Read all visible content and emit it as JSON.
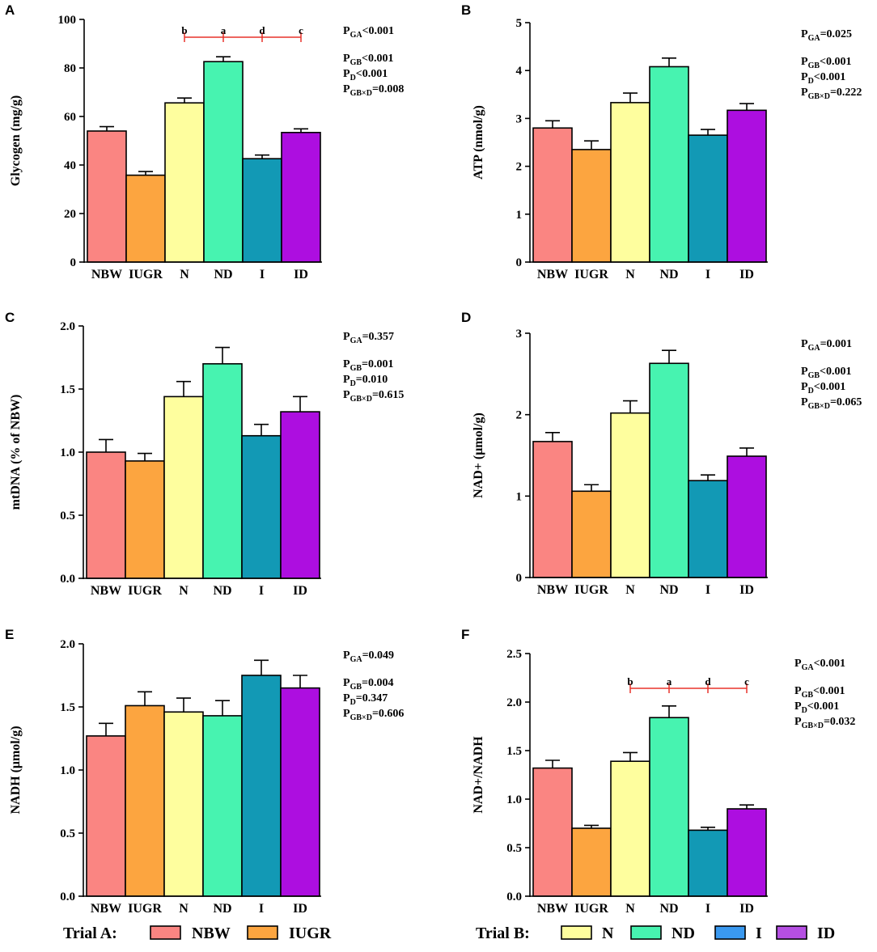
{
  "figure": {
    "groups": [
      "NBW",
      "IUGR",
      "N",
      "ND",
      "I",
      "ID"
    ],
    "colors": {
      "NBW": "#fa8582",
      "IUGR": "#fca540",
      "N": "#fefe9e",
      "ND": "#47f3b0",
      "I": "#1299b5",
      "ID": "#ad0ee0"
    },
    "legend": {
      "trial_a_label": "Trial A:",
      "trial_a_items": [
        {
          "label": "NBW",
          "color": "#fa8582"
        },
        {
          "label": "IUGR",
          "color": "#fca540"
        }
      ],
      "trial_b_label": "Trial B:",
      "trial_b_items": [
        {
          "label": "N",
          "color": "#fefe9e"
        },
        {
          "label": "ND",
          "color": "#47f3b0"
        },
        {
          "label": "I",
          "color": "#3a99f0"
        },
        {
          "label": "ID",
          "color": "#b54fe3"
        }
      ]
    }
  },
  "chart_data": [
    {
      "panel": "A",
      "type": "bar",
      "ylabel": "Glycogen (mg/g)",
      "categories": [
        "NBW",
        "IUGR",
        "N",
        "ND",
        "I",
        "ID"
      ],
      "values": [
        54,
        35.8,
        65.6,
        82.6,
        42.6,
        53.4
      ],
      "errors": [
        1.8,
        1.5,
        2.0,
        2.0,
        1.5,
        1.5
      ],
      "ylim": [
        0,
        100
      ],
      "yticks": [
        "0",
        "20",
        "40",
        "60",
        "80",
        "100"
      ],
      "stats": [
        {
          "sub": "GA",
          "rest": "<0.001"
        },
        {
          "sub": "GB",
          "rest": "<0.001"
        },
        {
          "sub": "D",
          "rest": "<0.001"
        },
        {
          "sub": "GB×D",
          "rest": "=0.008"
        }
      ],
      "letters": [
        "b",
        "a",
        "d",
        "c"
      ]
    },
    {
      "panel": "B",
      "type": "bar",
      "ylabel": "ATP (nmol/g)",
      "categories": [
        "NBW",
        "IUGR",
        "N",
        "ND",
        "I",
        "ID"
      ],
      "values": [
        2.8,
        2.35,
        3.33,
        4.08,
        2.65,
        3.17
      ],
      "errors": [
        0.15,
        0.18,
        0.2,
        0.18,
        0.12,
        0.14
      ],
      "ylim": [
        0,
        5
      ],
      "yticks": [
        "0",
        "1",
        "2",
        "3",
        "4",
        "5"
      ],
      "stats": [
        {
          "sub": "GA",
          "rest": "=0.025"
        },
        {
          "sub": "GB",
          "rest": "<0.001"
        },
        {
          "sub": "D",
          "rest": "<0.001"
        },
        {
          "sub": "GB×D",
          "rest": "=0.222"
        }
      ],
      "letters": []
    },
    {
      "panel": "C",
      "type": "bar",
      "ylabel": "mtDNA (% of NBW)",
      "categories": [
        "NBW",
        "IUGR",
        "N",
        "ND",
        "I",
        "ID"
      ],
      "values": [
        1.0,
        0.93,
        1.44,
        1.7,
        1.13,
        1.32
      ],
      "errors": [
        0.1,
        0.06,
        0.12,
        0.13,
        0.09,
        0.12
      ],
      "ylim": [
        0,
        2
      ],
      "yticks": [
        "0.0",
        "0.5",
        "1.0",
        "1.5",
        "2.0"
      ],
      "stats": [
        {
          "sub": "GA",
          "rest": "=0.357"
        },
        {
          "sub": "GB",
          "rest": "=0.001"
        },
        {
          "sub": "D",
          "rest": "=0.010"
        },
        {
          "sub": "GB×D",
          "rest": "=0.615"
        }
      ],
      "letters": []
    },
    {
      "panel": "D",
      "type": "bar",
      "ylabel": "NAD+ (μmol/g)",
      "categories": [
        "NBW",
        "IUGR",
        "N",
        "ND",
        "I",
        "ID"
      ],
      "values": [
        1.67,
        1.06,
        2.02,
        2.63,
        1.19,
        1.49
      ],
      "errors": [
        0.11,
        0.08,
        0.15,
        0.16,
        0.07,
        0.1
      ],
      "ylim": [
        0,
        3
      ],
      "yticks": [
        "0",
        "1",
        "2",
        "3"
      ],
      "stats": [
        {
          "sub": "GA",
          "rest": "=0.001"
        },
        {
          "sub": "GB",
          "rest": "<0.001"
        },
        {
          "sub": "D",
          "rest": "<0.001"
        },
        {
          "sub": "GB×D",
          "rest": "=0.065"
        }
      ],
      "letters": []
    },
    {
      "panel": "E",
      "type": "bar",
      "ylabel": "NADH (μmol/g)",
      "categories": [
        "NBW",
        "IUGR",
        "N",
        "ND",
        "I",
        "ID"
      ],
      "values": [
        1.27,
        1.51,
        1.46,
        1.43,
        1.75,
        1.65
      ],
      "errors": [
        0.1,
        0.11,
        0.11,
        0.12,
        0.12,
        0.1
      ],
      "ylim": [
        0,
        2
      ],
      "yticks": [
        "0.0",
        "0.5",
        "1.0",
        "1.5",
        "2.0"
      ],
      "stats": [
        {
          "sub": "GA",
          "rest": "=0.049"
        },
        {
          "sub": "GB",
          "rest": "=0.004"
        },
        {
          "sub": "D",
          "rest": "=0.347"
        },
        {
          "sub": "GB×D",
          "rest": "=0.606"
        }
      ],
      "letters": []
    },
    {
      "panel": "F",
      "type": "bar",
      "ylabel": "NAD+/NADH",
      "categories": [
        "NBW",
        "IUGR",
        "N",
        "ND",
        "I",
        "ID"
      ],
      "values": [
        1.32,
        0.7,
        1.39,
        1.84,
        0.68,
        0.9
      ],
      "errors": [
        0.08,
        0.03,
        0.09,
        0.12,
        0.03,
        0.04
      ],
      "ylim": [
        0,
        2.5
      ],
      "yticks": [
        "0.0",
        "0.5",
        "1.0",
        "1.5",
        "2.0",
        "2.5"
      ],
      "stats": [
        {
          "sub": "GA",
          "rest": "<0.001"
        },
        {
          "sub": "GB",
          "rest": "<0.001"
        },
        {
          "sub": "D",
          "rest": "<0.001"
        },
        {
          "sub": "GB×D",
          "rest": "=0.032"
        }
      ],
      "letters": [
        "b",
        "a",
        "d",
        "c"
      ]
    }
  ]
}
